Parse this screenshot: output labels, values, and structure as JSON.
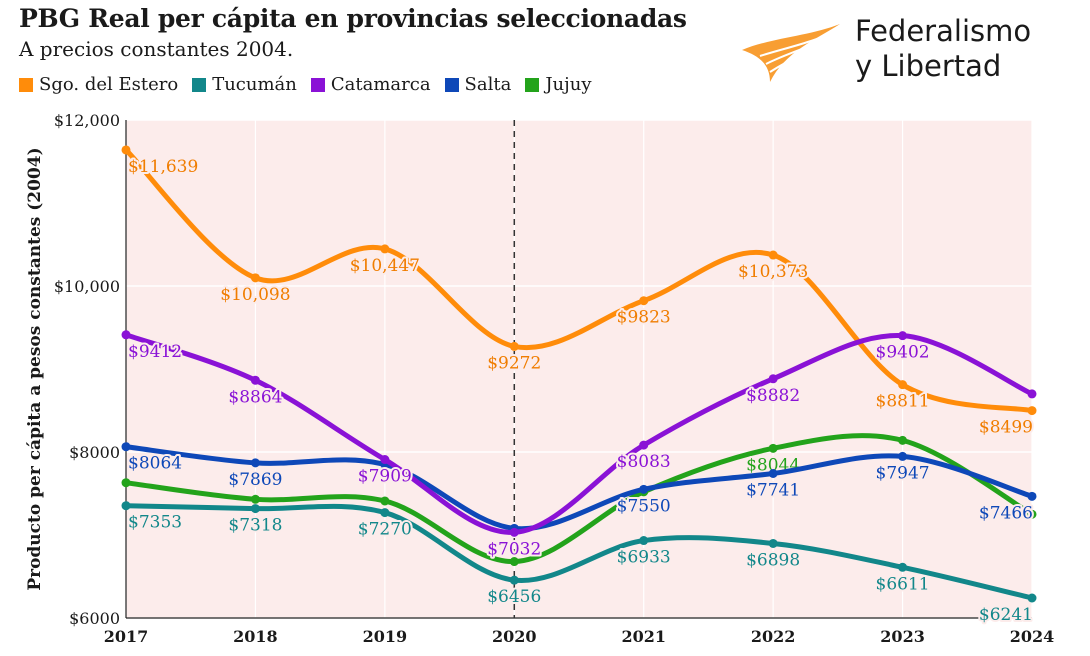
{
  "header": {
    "title": "PBG Real per cápita en provincias seleccionadas",
    "subtitle": "A precios constantes 2004."
  },
  "brand": {
    "line1": "Federalismo",
    "line2": "y Libertad",
    "accent_color": "#F7941D"
  },
  "chart_data": {
    "type": "line",
    "title": "PBG Real per cápita en provincias seleccionadas",
    "subtitle": "A precios constantes 2004.",
    "xlabel": "",
    "ylabel": "Producto per cápita a pesos constantes (2004)",
    "ylim": [
      6000,
      12000
    ],
    "yticks": [
      6000,
      8000,
      10000,
      12000
    ],
    "ytick_labels": [
      "$6000",
      "$8000",
      "$10,000",
      "$12,000"
    ],
    "x": [
      "2017",
      "2018",
      "2019",
      "2020",
      "2021",
      "2022",
      "2023",
      "2024"
    ],
    "marker_line_at": "2020",
    "legend_position": "top",
    "series": [
      {
        "name": "Sgo. del Estero",
        "color": "#FF8C0A",
        "label_color": "#F07D00",
        "values": [
          11639,
          10098,
          10447,
          9272,
          9823,
          10373,
          8811,
          8499
        ],
        "labels": [
          "$11,639",
          "$10,098",
          "$10,447",
          "$9272",
          "$9823",
          "$10,373",
          "$8811",
          "$8499"
        ]
      },
      {
        "name": "Tucumán",
        "color": "#12878A",
        "label_color": "#12878A",
        "values": [
          7353,
          7318,
          7270,
          6456,
          6933,
          6898,
          6611,
          6241
        ],
        "labels": [
          "$7353",
          "$7318",
          "$7270",
          "$6456",
          "$6933",
          "$6898",
          "$6611",
          "$6241"
        ]
      },
      {
        "name": "Catamarca",
        "color": "#8A12D6",
        "label_color": "#8A12D6",
        "values": [
          9412,
          8864,
          7909,
          7032,
          8083,
          8882,
          9402,
          8700
        ],
        "labels": [
          "$9412",
          "$8864",
          "$7909",
          "$7032",
          "$8083",
          "$8882",
          "$9402",
          ""
        ]
      },
      {
        "name": "Salta",
        "color": "#0E48B8",
        "label_color": "#0E48B8",
        "values": [
          8064,
          7869,
          7850,
          7080,
          7550,
          7741,
          7947,
          7466
        ],
        "labels": [
          "$8064",
          "$7869",
          "",
          "",
          "$7550",
          "$7741",
          "$7947",
          "$7466"
        ]
      },
      {
        "name": "Jujuy",
        "color": "#23A31B",
        "label_color": "#23A31B",
        "values": [
          7630,
          7430,
          7410,
          6680,
          7520,
          8044,
          8140,
          7250
        ],
        "labels": [
          "",
          "",
          "",
          "",
          "",
          "$8044",
          "",
          ""
        ]
      }
    ]
  }
}
